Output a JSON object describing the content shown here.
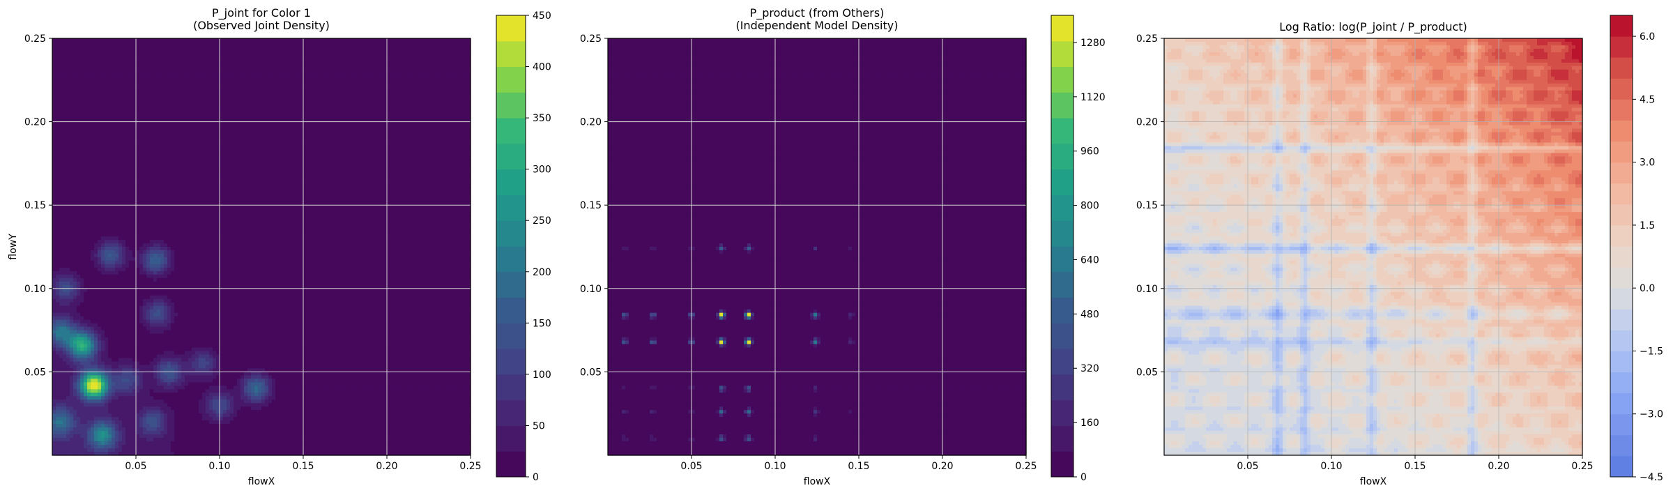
{
  "chart_data": [
    {
      "type": "heatmap",
      "title_lines": [
        "P_joint for Color 1",
        "(Observed Joint Density)"
      ],
      "xlabel": "flowX",
      "ylabel": "flowY",
      "xlim": [
        0,
        0.25
      ],
      "ylim": [
        0,
        0.25
      ],
      "x_ticks": [
        "0.05",
        "0.10",
        "0.15",
        "0.20",
        "0.25"
      ],
      "y_ticks": [
        "0.05",
        "0.10",
        "0.15",
        "0.20",
        "0.25"
      ],
      "grid": true,
      "colormap": "viridis",
      "colorbar": {
        "range": [
          0,
          450
        ],
        "ticks": [
          "0",
          "50",
          "100",
          "150",
          "200",
          "250",
          "300",
          "350",
          "400",
          "450"
        ]
      },
      "hotspots": [
        {
          "x": 0.025,
          "y": 0.042,
          "peak": 440
        },
        {
          "x": 0.018,
          "y": 0.066,
          "peak": 300
        },
        {
          "x": 0.03,
          "y": 0.012,
          "peak": 220
        },
        {
          "x": 0.005,
          "y": 0.074,
          "peak": 190
        },
        {
          "x": 0.062,
          "y": 0.117,
          "peak": 170
        },
        {
          "x": 0.035,
          "y": 0.12,
          "peak": 150
        },
        {
          "x": 0.122,
          "y": 0.04,
          "peak": 180
        },
        {
          "x": 0.07,
          "y": 0.05,
          "peak": 140
        },
        {
          "x": 0.063,
          "y": 0.085,
          "peak": 130
        },
        {
          "x": 0.005,
          "y": 0.02,
          "peak": 160
        },
        {
          "x": 0.1,
          "y": 0.03,
          "peak": 120
        },
        {
          "x": 0.09,
          "y": 0.055,
          "peak": 110
        },
        {
          "x": 0.06,
          "y": 0.02,
          "peak": 120
        },
        {
          "x": 0.008,
          "y": 0.1,
          "peak": 120
        },
        {
          "x": 0.045,
          "y": 0.045,
          "peak": 110
        }
      ]
    },
    {
      "type": "heatmap",
      "title_lines": [
        "P_product (from Others)",
        "(Independent Model Density)"
      ],
      "xlabel": "flowX",
      "ylabel": "",
      "xlim": [
        0,
        0.25
      ],
      "ylim": [
        0,
        0.25
      ],
      "x_ticks": [
        "0.05",
        "0.10",
        "0.15",
        "0.20",
        "0.25"
      ],
      "y_ticks": [
        "0.05",
        "0.10",
        "0.15",
        "0.20",
        "0.25"
      ],
      "grid": true,
      "colormap": "viridis",
      "colorbar": {
        "range": [
          0,
          1360
        ],
        "ticks": [
          "0",
          "160",
          "320",
          "480",
          "640",
          "800",
          "960",
          "1120",
          "1280"
        ]
      },
      "x_marginal_peaks": [
        {
          "x": 0.068,
          "weight": 1.0
        },
        {
          "x": 0.084,
          "weight": 1.0
        },
        {
          "x": 0.124,
          "weight": 0.45
        },
        {
          "x": 0.027,
          "weight": 0.35
        },
        {
          "x": 0.05,
          "weight": 0.3
        },
        {
          "x": 0.01,
          "weight": 0.3
        },
        {
          "x": 0.145,
          "weight": 0.15
        }
      ],
      "y_marginal_peaks": [
        {
          "y": 0.084,
          "weight": 1.0
        },
        {
          "y": 0.068,
          "weight": 1.0
        },
        {
          "y": 0.124,
          "weight": 0.35
        },
        {
          "y": 0.026,
          "weight": 0.4
        },
        {
          "y": 0.04,
          "weight": 0.3
        },
        {
          "y": 0.01,
          "weight": 0.35
        }
      ],
      "hotspots": [
        {
          "x": 0.068,
          "y": 0.068,
          "peak": 1360
        },
        {
          "x": 0.084,
          "y": 0.068,
          "peak": 1300
        },
        {
          "x": 0.068,
          "y": 0.084,
          "peak": 1280
        },
        {
          "x": 0.084,
          "y": 0.084,
          "peak": 1280
        }
      ]
    },
    {
      "type": "heatmap",
      "title": "Log Ratio: log(P_joint / P_product)",
      "xlabel": "flowX",
      "ylabel": "",
      "xlim": [
        0,
        0.25
      ],
      "ylim": [
        0,
        0.25
      ],
      "x_ticks": [
        "0.05",
        "0.10",
        "0.15",
        "0.20",
        "0.25"
      ],
      "y_ticks": [
        "0.05",
        "0.10",
        "0.15",
        "0.20",
        "0.25"
      ],
      "grid": true,
      "colormap": "coolwarm",
      "colorbar": {
        "range": [
          -4.5,
          6.5
        ],
        "ticks": [
          "−4.5",
          "−3.0",
          "−1.5",
          "0.0",
          "1.5",
          "3.0",
          "4.5",
          "6.0"
        ]
      },
      "gradient": {
        "low_corner_value": 0.0,
        "high_corner_value": 6.3
      },
      "low_x_bands": [
        0.068,
        0.084,
        0.124,
        0.184
      ],
      "low_y_bands": [
        0.084,
        0.068,
        0.184,
        0.124
      ]
    }
  ]
}
